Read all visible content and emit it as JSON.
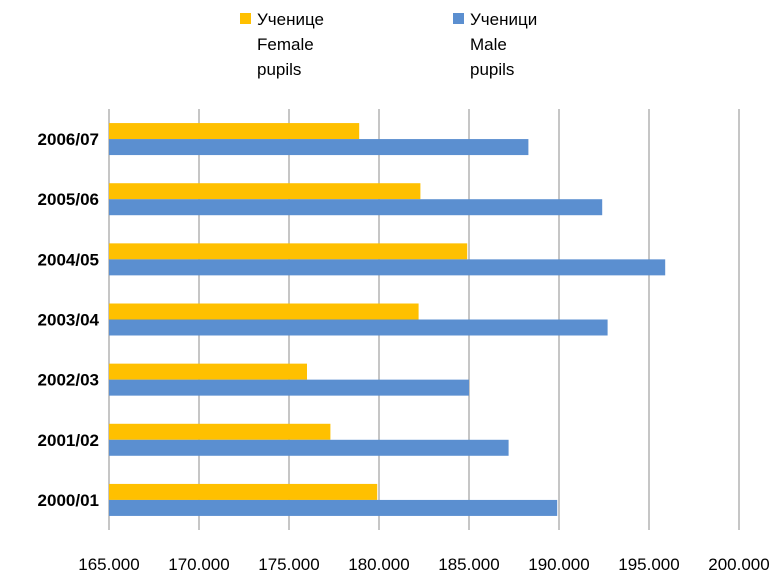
{
  "chart_data": {
    "type": "bar",
    "orientation": "horizontal",
    "categories": [
      "2006/07",
      "2005/06",
      "2004/05",
      "2003/04",
      "2002/03",
      "2001/02",
      "2000/01"
    ],
    "series": [
      {
        "name": "Ученице\nFemale\npupils",
        "color": "#FFC000",
        "values": [
          178.9,
          182.3,
          184.9,
          182.2,
          176.0,
          177.3,
          179.9
        ]
      },
      {
        "name": "Ученици\nMale\npupils",
        "color": "#5B8FD0",
        "values": [
          188.3,
          192.4,
          195.9,
          192.7,
          185.0,
          187.2,
          189.9
        ]
      }
    ],
    "xlim": [
      165,
      200
    ],
    "xticks": [
      165,
      170,
      175,
      180,
      185,
      190,
      195,
      200
    ],
    "xtick_labels": [
      "165.000",
      "170.000",
      "175.000",
      "180.000",
      "185.000",
      "190.000",
      "195.000",
      "200.000"
    ],
    "grid": "vertical",
    "legend_position": "top-center",
    "title": "",
    "xlabel": "",
    "ylabel": ""
  }
}
